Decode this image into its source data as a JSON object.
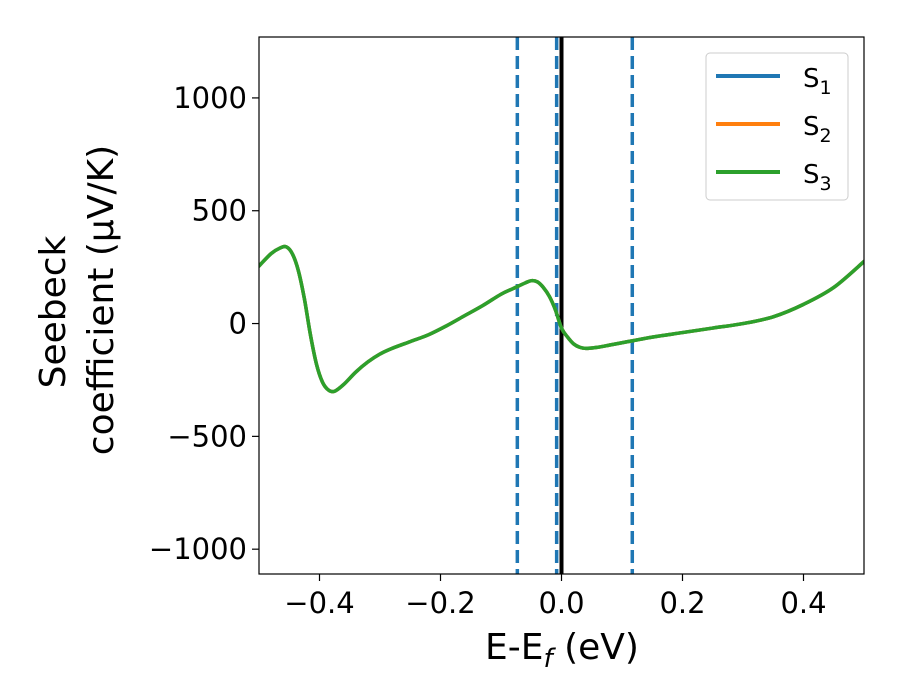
{
  "chart_data": {
    "type": "line",
    "xlabel": {
      "main": "E-E",
      "sub": "f",
      "unit": " (eV)"
    },
    "ylabel": {
      "line1": "Seebeck",
      "line2": "coefficient  (μV/K)"
    },
    "xlim": [
      -0.5,
      0.5
    ],
    "ylim": [
      -1110,
      1270
    ],
    "xticks": [
      -0.4,
      -0.2,
      0.0,
      0.2,
      0.4
    ],
    "xtick_labels": [
      "−0.4",
      "−0.2",
      "0.0",
      "0.2",
      "0.4"
    ],
    "yticks": [
      -1000,
      -500,
      0,
      500,
      1000
    ],
    "ytick_labels": [
      "−1000",
      "−500",
      "0",
      "500",
      "1000"
    ],
    "grid": false,
    "legend_position": "top-right",
    "series": [
      {
        "name": "S",
        "sub": "1",
        "color": "#1f77b4"
      },
      {
        "name": "S",
        "sub": "2",
        "color": "#ff7f0e"
      },
      {
        "name": "S",
        "sub": "3",
        "color": "#2ca02c"
      }
    ],
    "curve": {
      "x": [
        -0.5,
        -0.48,
        -0.465,
        -0.455,
        -0.445,
        -0.435,
        -0.425,
        -0.415,
        -0.405,
        -0.395,
        -0.385,
        -0.375,
        -0.36,
        -0.34,
        -0.32,
        -0.3,
        -0.28,
        -0.25,
        -0.22,
        -0.19,
        -0.16,
        -0.13,
        -0.1,
        -0.08,
        -0.06,
        -0.05,
        -0.04,
        -0.03,
        -0.02,
        -0.01,
        0.0,
        0.01,
        0.02,
        0.03,
        0.04,
        0.06,
        0.08,
        0.1,
        0.12,
        0.15,
        0.2,
        0.25,
        0.3,
        0.35,
        0.4,
        0.45,
        0.5
      ],
      "y": [
        255,
        310,
        335,
        340,
        310,
        235,
        110,
        -50,
        -180,
        -260,
        -295,
        -300,
        -270,
        -215,
        -170,
        -135,
        -110,
        -80,
        -50,
        -10,
        35,
        80,
        130,
        155,
        180,
        190,
        185,
        160,
        120,
        60,
        -20,
        -60,
        -90,
        -105,
        -110,
        -105,
        -95,
        -85,
        -75,
        -60,
        -40,
        -20,
        0,
        30,
        85,
        160,
        275
      ]
    },
    "vlines": [
      {
        "x": -0.073,
        "style": "dashed",
        "color": "#1f77b4"
      },
      {
        "x": -0.008,
        "style": "dashed",
        "color": "#1f77b4"
      },
      {
        "x": 0.117,
        "style": "dashed",
        "color": "#1f77b4"
      },
      {
        "x": 0.0,
        "style": "solid",
        "color": "#000000"
      }
    ]
  }
}
